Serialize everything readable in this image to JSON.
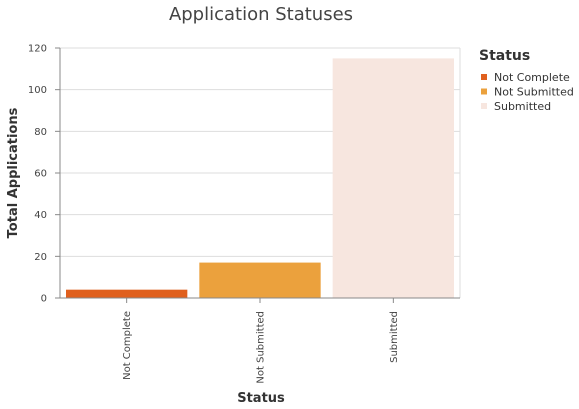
{
  "chart_data": {
    "type": "bar",
    "title": "Application Statuses",
    "xlabel": "Status",
    "ylabel": "Total Applications",
    "categories": [
      "Not Complete",
      "Not Submitted",
      "Submitted"
    ],
    "values": [
      4,
      17,
      115
    ],
    "colors": [
      "#e0601e",
      "#eba13d",
      "#f7e6df"
    ],
    "ylim": [
      0,
      120
    ],
    "yticks": [
      0,
      20,
      40,
      60,
      80,
      100,
      120
    ],
    "grid": true,
    "legend": {
      "title": "Status",
      "placement": "right",
      "entries": [
        "Not Complete",
        "Not Submitted",
        "Submitted"
      ]
    }
  }
}
